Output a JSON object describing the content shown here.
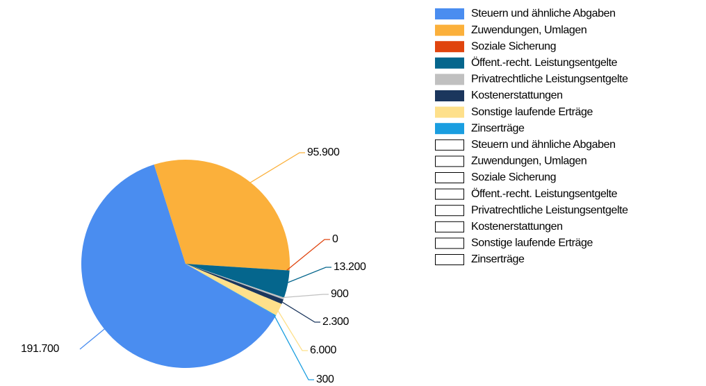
{
  "chart_data": {
    "type": "pie",
    "categories": [
      "Steuern und ähnliche Abgaben",
      "Zuwendungen, Umlagen",
      "Soziale Sicherung",
      "Öffent.-recht. Leistungsentgelte",
      "Privatrechtliche Leistungsentgelte",
      "Kostenerstattungen",
      "Sonstige laufende Erträge",
      "Zinserträge"
    ],
    "values": [
      191700,
      95900,
      0,
      13200,
      900,
      2300,
      6000,
      300
    ],
    "value_labels": [
      "191.700",
      "95.900",
      "0",
      "13.200",
      "900",
      "2.300",
      "6.000",
      "300"
    ],
    "colors": [
      "#4a8df0",
      "#fbb03b",
      "#e0440e",
      "#05668d",
      "#c0c0c0",
      "#1b365d",
      "#fee08b",
      "#1a9ee0"
    ],
    "legend_unfilled": [
      "Steuern und ähnliche Abgaben",
      "Zuwendungen, Umlagen",
      "Soziale Sicherung",
      "Öffent.-recht. Leistungsentgelte",
      "Privatrechtliche Leistungsentgelte",
      "Kostenerstattungen",
      "Sonstige laufende Erträge",
      "Zinserträge"
    ]
  }
}
